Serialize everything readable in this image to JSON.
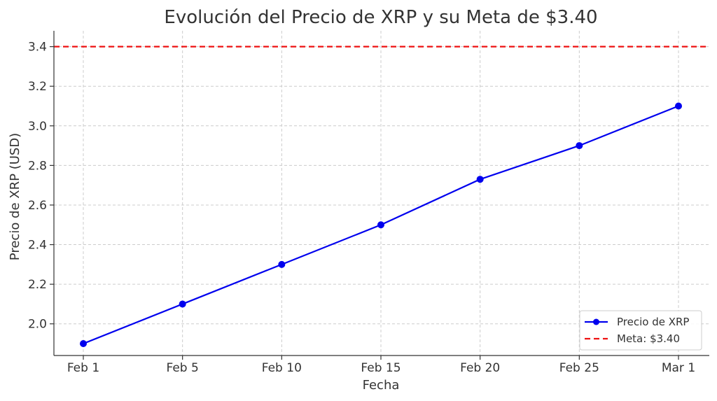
{
  "chart_data": {
    "type": "line",
    "title": "Evolución del Precio de XRP y su Meta de $3.40",
    "xlabel": "Fecha",
    "ylabel": "Precio de XRP (USD)",
    "categories": [
      "Feb 1",
      "Feb 5",
      "Feb 10",
      "Feb 15",
      "Feb 20",
      "Feb 25",
      "Mar 1"
    ],
    "series": [
      {
        "name": "Precio de XRP",
        "values": [
          1.9,
          2.1,
          2.3,
          2.5,
          2.73,
          2.9,
          3.1
        ],
        "color": "#0000ee",
        "marker": "circle"
      }
    ],
    "reference_line": {
      "name": "Meta: $3.40",
      "value": 3.4,
      "color": "#ee1111",
      "style": "dashed"
    },
    "yticks": [
      "2.0",
      "2.2",
      "2.4",
      "2.6",
      "2.8",
      "3.0",
      "3.2",
      "3.4"
    ],
    "ytick_values": [
      2.0,
      2.2,
      2.4,
      2.6,
      2.8,
      3.0,
      3.2,
      3.4
    ],
    "ylim": [
      1.84,
      3.48
    ],
    "grid": true,
    "legend_position": "bottom-right"
  }
}
